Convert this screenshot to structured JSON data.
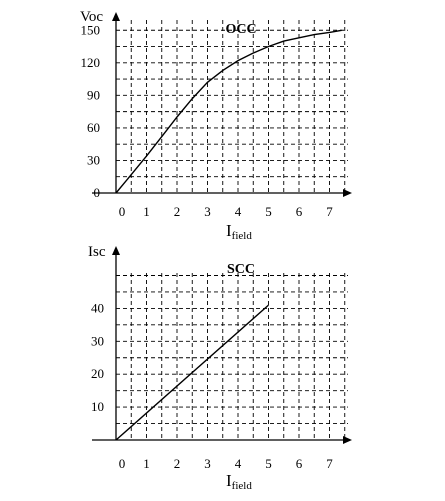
{
  "chart_data": [
    {
      "type": "line",
      "title": "OCC",
      "ylabel": "Voc",
      "xlabel_main": "I",
      "xlabel_sub": "field",
      "x_ticks": [
        0,
        1,
        2,
        3,
        4,
        5,
        6,
        7
      ],
      "y_ticks": [
        0,
        30,
        60,
        90,
        120,
        150
      ],
      "xlim": [
        0,
        7.4
      ],
      "ylim": [
        0,
        160
      ],
      "grid": true,
      "series": [
        {
          "x": [
            0,
            0.5,
            1,
            1.5,
            2,
            2.5,
            3,
            3.5,
            4,
            4.5,
            5,
            5.5,
            6,
            6.5,
            7,
            7.4
          ],
          "values": [
            0,
            17,
            34,
            52,
            70,
            87,
            102,
            113,
            122,
            129,
            135,
            140,
            143,
            146,
            148,
            150
          ]
        }
      ]
    },
    {
      "type": "line",
      "title": "SCC",
      "ylabel": "Isc",
      "xlabel_main": "I",
      "xlabel_sub": "field",
      "x_ticks": [
        0,
        1,
        2,
        3,
        4,
        5,
        6,
        7
      ],
      "y_ticks": [
        10,
        20,
        30,
        40
      ],
      "xlim": [
        0,
        7.4
      ],
      "ylim": [
        0,
        50
      ],
      "grid": true,
      "series": [
        {
          "x": [
            0,
            5
          ],
          "values": [
            0,
            41
          ]
        }
      ]
    }
  ]
}
